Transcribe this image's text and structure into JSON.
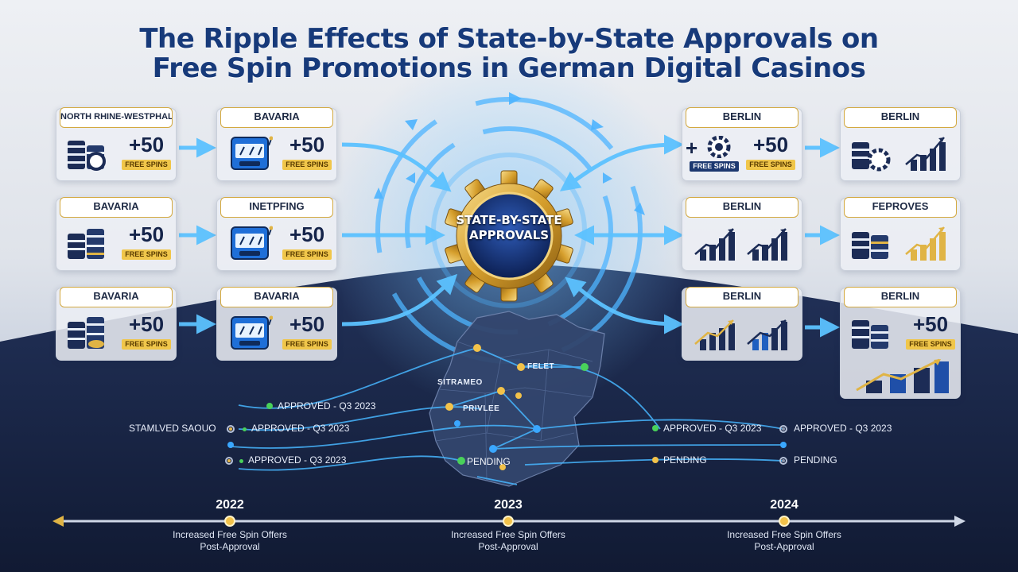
{
  "title": {
    "line1": "The Ripple Effects of State-by-State Approvals on",
    "line2": "Free Spin Promotions in German Digital Casinos"
  },
  "colors": {
    "accent_blue": "#3aa7ff",
    "gold": "#e0b445",
    "navy": "#15244a",
    "approved_green": "#49d15a",
    "pending_yellow": "#f2c24a"
  },
  "left_columns": {
    "col1": [
      {
        "label": "NORTH RHINE-WESTPHALIA",
        "bonus": "+50",
        "badge": "FREE SPINS",
        "icon": "casino-chips-icon"
      },
      {
        "label": "BAVARIA",
        "bonus": "+50",
        "badge": "FREE SPINS",
        "icon": "casino-chips-icon"
      },
      {
        "label": "BAVARIA",
        "bonus": "+50",
        "badge": "FREE SPINS",
        "icon": "casino-chips-icon"
      }
    ],
    "col2": [
      {
        "label": "BAVARIA",
        "bonus": "+50",
        "badge": "FREE SPINS",
        "icon": "slot-machine-icon"
      },
      {
        "label": "INETPFING",
        "bonus": "+50",
        "badge": "FREE SPINS",
        "icon": "slot-machine-icon"
      },
      {
        "label": "BAVARIA",
        "bonus": "+50",
        "badge": "FREE SPINS",
        "icon": "slot-machine-icon"
      }
    ]
  },
  "center": {
    "label": "STATE-BY-STATE APPROVALS",
    "icon": "gear-icon"
  },
  "right_columns": {
    "col3": [
      {
        "label": "BERLIN",
        "bonus_left": "+",
        "badge_left": "FREE SPINS",
        "bonus": "+50",
        "badge": "FREE SPINS"
      },
      {
        "label": "BERLIN",
        "icon": "bar-chart-icon"
      },
      {
        "label": "BERLIN",
        "icon": "bar-chart-icon"
      }
    ],
    "col4": [
      {
        "label": "BERLIN",
        "icon": "bar-chart-icon"
      },
      {
        "label": "FEPROVES",
        "icon": "bar-chart-icon"
      },
      {
        "label": "BERLIN",
        "bonus": "+50",
        "badge": "FREE SPINS",
        "icon": "trend-chart-icon"
      }
    ]
  },
  "map": {
    "labels": [
      "SITRAMEO",
      "PRIVLEE",
      "FELET"
    ]
  },
  "statuses": {
    "left_header": "STAMLVED SAOUO",
    "left": [
      "APPROVED - Q3 2023",
      "APPROVED - Q3 2023",
      "APPROVED - Q3 2023"
    ],
    "map_pending": "PENDING",
    "right": [
      "APPROVED - Q3 2023",
      "APPROVED - Q3 2023",
      "PENDING",
      "PENDING"
    ]
  },
  "timeline": [
    {
      "year": "2022",
      "line1": "Increased Free Spin Offers",
      "line2": "Post-Approval"
    },
    {
      "year": "2023",
      "line1": "Increased Free Spin Offers",
      "line2": "Post-Approval"
    },
    {
      "year": "2024",
      "line1": "Increased Free Spin Offers",
      "line2": "Post-Approval"
    }
  ]
}
